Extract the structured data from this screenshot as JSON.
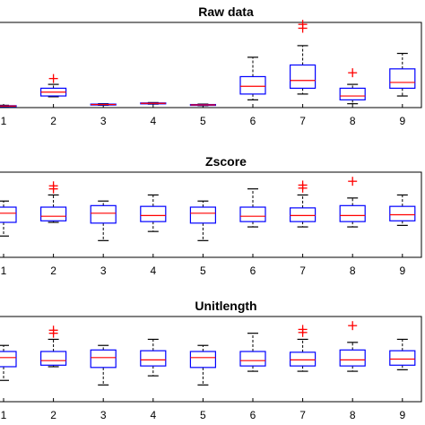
{
  "colors": {
    "box": "#0000ff",
    "median": "#ff0000",
    "whisker": "#000000",
    "outlier": "#ff0000",
    "axis": "#000000",
    "background": "#ffffff"
  },
  "chart_data": [
    {
      "type": "box",
      "title": "Raw data",
      "xlabel": "",
      "ylabel": "",
      "categories": [
        "1",
        "2",
        "3",
        "4",
        "5",
        "6",
        "7",
        "8",
        "9"
      ],
      "ylim": [
        0,
        22
      ],
      "grid": false,
      "boxes": [
        {
          "whisker_low": 0.2,
          "q1": 0.3,
          "median": 0.4,
          "q3": 0.5,
          "whisker_high": 0.6,
          "outliers": []
        },
        {
          "whisker_low": 2.8,
          "q1": 3.0,
          "median": 4.0,
          "q3": 5.0,
          "whisker_high": 6.0,
          "outliers": [
            7.5
          ]
        },
        {
          "whisker_low": 0.6,
          "q1": 0.7,
          "median": 0.8,
          "q3": 0.9,
          "whisker_high": 1.0,
          "outliers": []
        },
        {
          "whisker_low": 0.9,
          "q1": 1.0,
          "median": 1.1,
          "q3": 1.2,
          "whisker_high": 1.3,
          "outliers": []
        },
        {
          "whisker_low": 0.5,
          "q1": 0.6,
          "median": 0.7,
          "q3": 0.8,
          "whisker_high": 0.9,
          "outliers": []
        },
        {
          "whisker_low": 2.0,
          "q1": 3.5,
          "median": 5.5,
          "q3": 8.0,
          "whisker_high": 13.0,
          "outliers": []
        },
        {
          "whisker_low": 3.5,
          "q1": 5.0,
          "median": 7.0,
          "q3": 11.0,
          "whisker_high": 16.0,
          "outliers": [
            20.5,
            21.5
          ]
        },
        {
          "whisker_low": 1.0,
          "q1": 2.0,
          "median": 3.0,
          "q3": 5.0,
          "whisker_high": 6.0,
          "outliers": [
            9.0
          ]
        },
        {
          "whisker_low": 3.0,
          "q1": 5.0,
          "median": 6.5,
          "q3": 10.0,
          "whisker_high": 14.0,
          "outliers": []
        }
      ]
    },
    {
      "type": "box",
      "title": "Zscore",
      "xlabel": "",
      "ylabel": "",
      "categories": [
        "1",
        "2",
        "3",
        "4",
        "5",
        "6",
        "7",
        "8",
        "9"
      ],
      "ylim": [
        -2.8,
        2.8
      ],
      "grid": false,
      "boxes": [
        {
          "whisker_low": -1.4,
          "q1": -0.5,
          "median": 0.1,
          "q3": 0.5,
          "whisker_high": 0.9,
          "outliers": []
        },
        {
          "whisker_low": -0.5,
          "q1": -0.4,
          "median": -0.1,
          "q3": 0.5,
          "whisker_high": 1.3,
          "outliers": [
            1.7,
            1.9
          ]
        },
        {
          "whisker_low": -1.7,
          "q1": -0.55,
          "median": 0.1,
          "q3": 0.6,
          "whisker_high": 0.9,
          "outliers": []
        },
        {
          "whisker_low": -1.1,
          "q1": -0.45,
          "median": -0.05,
          "q3": 0.55,
          "whisker_high": 1.3,
          "outliers": []
        },
        {
          "whisker_low": -1.7,
          "q1": -0.55,
          "median": 0.1,
          "q3": 0.5,
          "whisker_high": 0.9,
          "outliers": []
        },
        {
          "whisker_low": -0.8,
          "q1": -0.45,
          "median": -0.1,
          "q3": 0.5,
          "whisker_high": 1.7,
          "outliers": []
        },
        {
          "whisker_low": -0.8,
          "q1": -0.45,
          "median": -0.05,
          "q3": 0.45,
          "whisker_high": 1.3,
          "outliers": [
            1.75,
            1.95
          ]
        },
        {
          "whisker_low": -0.8,
          "q1": -0.45,
          "median": -0.05,
          "q3": 0.6,
          "whisker_high": 1.1,
          "outliers": [
            2.2
          ]
        },
        {
          "whisker_low": -0.7,
          "q1": -0.4,
          "median": 0.0,
          "q3": 0.55,
          "whisker_high": 1.3,
          "outliers": []
        }
      ]
    },
    {
      "type": "box",
      "title": "Unitlength",
      "xlabel": "",
      "ylabel": "",
      "categories": [
        "1",
        "2",
        "3",
        "4",
        "5",
        "6",
        "7",
        "8",
        "9"
      ],
      "ylim": [
        -2.8,
        2.8
      ],
      "grid": false,
      "boxes": [
        {
          "whisker_low": -1.4,
          "q1": -0.5,
          "median": 0.1,
          "q3": 0.5,
          "whisker_high": 0.9,
          "outliers": []
        },
        {
          "whisker_low": -0.5,
          "q1": -0.4,
          "median": -0.1,
          "q3": 0.5,
          "whisker_high": 1.3,
          "outliers": [
            1.7,
            1.9
          ]
        },
        {
          "whisker_low": -1.7,
          "q1": -0.55,
          "median": 0.1,
          "q3": 0.6,
          "whisker_high": 0.9,
          "outliers": []
        },
        {
          "whisker_low": -1.1,
          "q1": -0.45,
          "median": -0.05,
          "q3": 0.55,
          "whisker_high": 1.3,
          "outliers": []
        },
        {
          "whisker_low": -1.7,
          "q1": -0.55,
          "median": 0.1,
          "q3": 0.5,
          "whisker_high": 0.9,
          "outliers": []
        },
        {
          "whisker_low": -0.8,
          "q1": -0.45,
          "median": -0.1,
          "q3": 0.5,
          "whisker_high": 1.7,
          "outliers": []
        },
        {
          "whisker_low": -0.8,
          "q1": -0.45,
          "median": -0.05,
          "q3": 0.45,
          "whisker_high": 1.3,
          "outliers": [
            1.75,
            1.95
          ]
        },
        {
          "whisker_low": -0.8,
          "q1": -0.45,
          "median": -0.05,
          "q3": 0.6,
          "whisker_high": 1.1,
          "outliers": [
            2.2
          ]
        },
        {
          "whisker_low": -0.7,
          "q1": -0.4,
          "median": 0.0,
          "q3": 0.55,
          "whisker_high": 1.3,
          "outliers": []
        }
      ]
    }
  ]
}
